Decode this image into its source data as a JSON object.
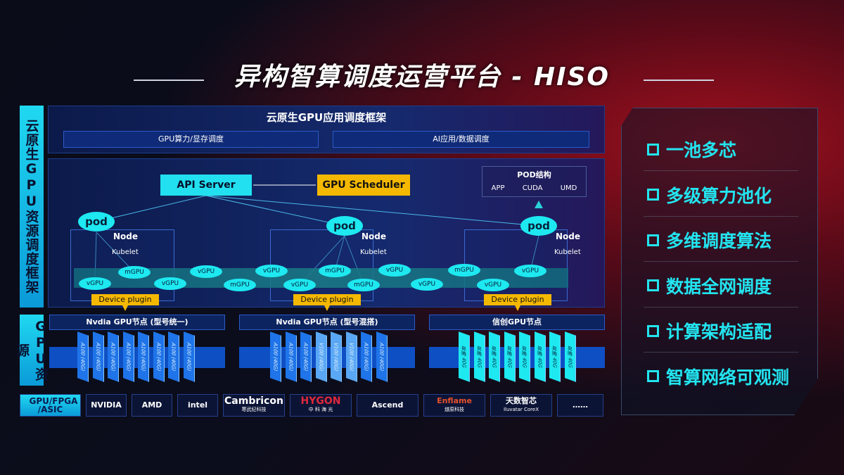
{
  "title": "异构智算调度运营平台 - HISO",
  "left_labels": {
    "scheduling": "云原生GPU资源调度框架",
    "resources": "GPU资源"
  },
  "framework": {
    "title": "云原生GPU应用调度框架",
    "left": "GPU算力/显存调度",
    "right": "AI应用/数据调度"
  },
  "api_server": "API Server",
  "gpu_scheduler": "GPU Scheduler",
  "pod_structure": {
    "title": "POD结构",
    "items": [
      "APP",
      "CUDA",
      "UMD"
    ]
  },
  "nodes": [
    {
      "node": "Node",
      "kubelet": "Kubelet",
      "pod": "pod",
      "device_plugin": "Device plugin"
    },
    {
      "node": "Node",
      "kubelet": "Kubelet",
      "pod": "pod",
      "device_plugin": "Device plugin"
    },
    {
      "node": "Node",
      "kubelet": "Kubelet",
      "pod": "pod",
      "device_plugin": "Device plugin"
    }
  ],
  "virtual_gpus": [
    "vGPU",
    "mGPU",
    "vGPU",
    "vGPU",
    "mGPU",
    "vGPU",
    "vGPU",
    "mGPU",
    "mGPU",
    "vGPU",
    "vGPU",
    "mGPU",
    "vGPU",
    "vGPU"
  ],
  "gpu_nodes": [
    {
      "title": "Nvdia GPU节点 (型号统一)",
      "cards": [
        "A100 (40G)",
        "A100 (40G)",
        "A100 (40G)",
        "A100 (40G)",
        "A100 (40G)",
        "A100 (40G)",
        "A100 (40G)",
        "A100 (40G)"
      ]
    },
    {
      "title": "Nvdia GPU节点 (型号混搭)",
      "cards": [
        "A100 (40G)",
        "A100 (40G)",
        "A100 (40G)",
        "V100 (40G)",
        "V100 (40G)",
        "V100 (40G)",
        "A100 (40G)",
        "A100 (40G)"
      ]
    },
    {
      "title": "信创GPU节点",
      "cards": [
        "昇腾 40G",
        "昇腾 40G",
        "昇腾 40G",
        "昇腾 40G",
        "昇腾 40G",
        "昇腾 40G",
        "昇腾 40G",
        "昇腾 40G"
      ]
    }
  ],
  "vendor_label": "GPU/FPGA /ASIC",
  "vendors": [
    {
      "name": "NVIDIA",
      "sub": ""
    },
    {
      "name": "AMD",
      "sub": ""
    },
    {
      "name": "intel",
      "sub": ""
    },
    {
      "name": "Cambricon",
      "sub": "寒武纪科技"
    },
    {
      "name": "HYGON",
      "sub": "中 科 海 光"
    },
    {
      "name": "Ascend",
      "sub": ""
    },
    {
      "name": "Enflame",
      "sub": "燧原科技"
    },
    {
      "name": "天数智芯",
      "sub": "Iluvatar CoreX"
    },
    {
      "name": "……",
      "sub": ""
    }
  ],
  "features": [
    "一池多芯",
    "多级算力池化",
    "多维调度算法",
    "数据全网调度",
    "计算架构适配",
    "智算网络可观测"
  ],
  "colors": {
    "cyan": "#22e5f0",
    "yellow": "#f5b800",
    "blue": "#0f4fc4"
  }
}
